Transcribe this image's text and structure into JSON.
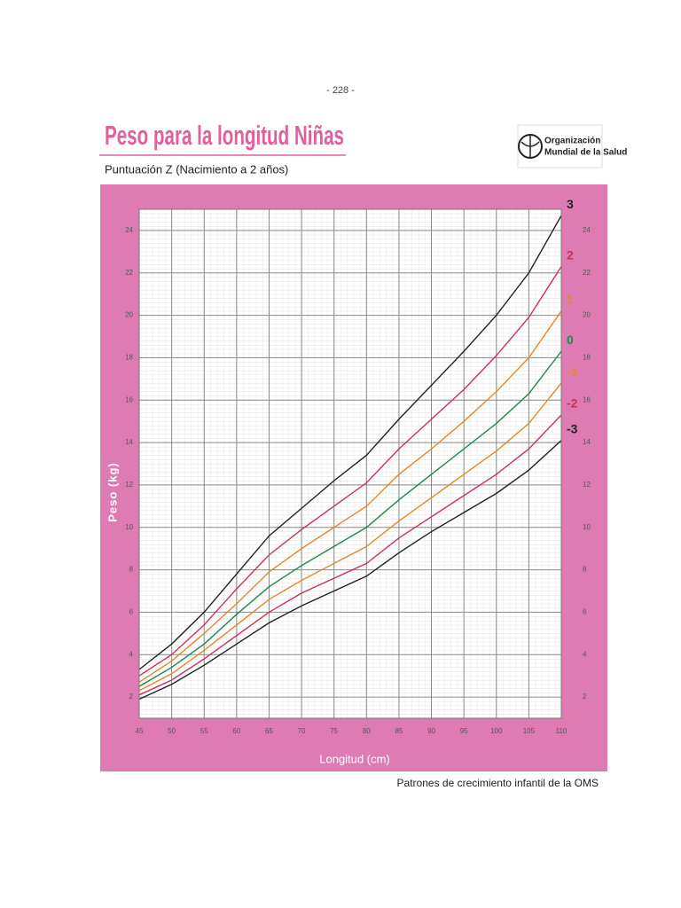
{
  "page_number": "- 228 -",
  "header": {
    "title": "Peso para la longitud Niñas",
    "subtitle": "Puntuación Z  (Nacimiento a 2 años)",
    "logo_text": [
      "Organización",
      "Mundial de la Salud"
    ]
  },
  "footer": "Patrones de crecimiento infantil de la OMS",
  "chart_data": {
    "type": "line",
    "x_label": "Longitud (cm)",
    "y_label": "Peso (kg)",
    "x": [
      45,
      50,
      55,
      60,
      65,
      70,
      75,
      80,
      85,
      90,
      95,
      100,
      105,
      110
    ],
    "xlim": [
      45,
      110
    ],
    "ylim": [
      1,
      25
    ],
    "xticks": [
      45,
      50,
      55,
      60,
      65,
      70,
      75,
      80,
      85,
      90,
      95,
      100,
      105,
      110
    ],
    "yticks": [
      2,
      4,
      6,
      8,
      10,
      12,
      14,
      16,
      18,
      20,
      22,
      24
    ],
    "grid": true,
    "series": [
      {
        "name": "3",
        "color": "#222222",
        "values": [
          3.3,
          4.5,
          6.0,
          7.8,
          9.6,
          10.9,
          12.2,
          13.4,
          15.1,
          16.7,
          18.3,
          20.0,
          22.0,
          24.7
        ]
      },
      {
        "name": "2",
        "color": "#c8325a",
        "values": [
          3.0,
          4.0,
          5.4,
          7.1,
          8.7,
          9.9,
          11.0,
          12.1,
          13.7,
          15.1,
          16.5,
          18.1,
          19.9,
          22.3
        ]
      },
      {
        "name": "1",
        "color": "#e8862a",
        "values": [
          2.7,
          3.7,
          5.0,
          6.4,
          7.9,
          9.0,
          10.0,
          11.0,
          12.5,
          13.7,
          15.0,
          16.4,
          18.0,
          20.2
        ]
      },
      {
        "name": "0",
        "color": "#1a8a4a",
        "values": [
          2.5,
          3.4,
          4.5,
          5.9,
          7.2,
          8.2,
          9.1,
          10.0,
          11.3,
          12.5,
          13.7,
          14.9,
          16.3,
          18.3
        ]
      },
      {
        "name": "-1",
        "color": "#e8862a",
        "values": [
          2.3,
          3.1,
          4.2,
          5.4,
          6.6,
          7.5,
          8.3,
          9.1,
          10.3,
          11.4,
          12.5,
          13.6,
          14.9,
          16.8
        ]
      },
      {
        "name": "-2",
        "color": "#c8325a",
        "values": [
          2.1,
          2.8,
          3.8,
          4.9,
          6.0,
          6.9,
          7.6,
          8.3,
          9.5,
          10.5,
          11.5,
          12.5,
          13.7,
          15.3
        ]
      },
      {
        "name": "-3",
        "color": "#222222",
        "values": [
          1.9,
          2.6,
          3.5,
          4.5,
          5.5,
          6.3,
          7.0,
          7.7,
          8.8,
          9.8,
          10.7,
          11.6,
          12.7,
          14.1
        ]
      }
    ]
  }
}
